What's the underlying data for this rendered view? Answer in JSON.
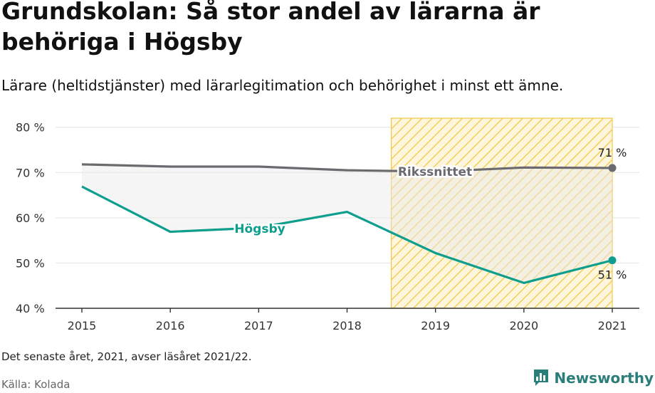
{
  "header": {
    "title": "Grundskolan: Så stor andel av lärarna är behöriga i Högsby",
    "subtitle": "Lärare (heltidstjänster) med lärarlegitimation och behörighet i minst ett ämne."
  },
  "footer": {
    "note": "Det senaste året, 2021, avser läsåret 2021/22.",
    "source": "Källa: Kolada",
    "brand": "Newsworthy"
  },
  "colors": {
    "hogsby": "#0d9e8e",
    "riket": "#6b6b6f",
    "highlight": "#f3c745",
    "brand": "#2a7d78"
  },
  "chart_data": {
    "type": "line",
    "x": [
      2015,
      2016,
      2017,
      2018,
      2019,
      2020,
      2021
    ],
    "ylim": [
      40,
      82
    ],
    "yticks": [
      40,
      50,
      60,
      70,
      80
    ],
    "ytick_labels": [
      "40 %",
      "50 %",
      "60 %",
      "70 %",
      "80 %"
    ],
    "xtick_labels": [
      "2015",
      "2016",
      "2017",
      "2018",
      "2019",
      "2020",
      "2021"
    ],
    "highlight_range": [
      2018.5,
      2021
    ],
    "series": [
      {
        "name": "Rikssnittet",
        "values": [
          71.8,
          71.3,
          71.3,
          70.5,
          70.2,
          71.1,
          71.0
        ],
        "end_label": "71 %"
      },
      {
        "name": "Högsby",
        "values": [
          66.9,
          56.9,
          57.8,
          61.3,
          52.2,
          45.6,
          50.6
        ],
        "end_label": "51 %"
      }
    ]
  }
}
